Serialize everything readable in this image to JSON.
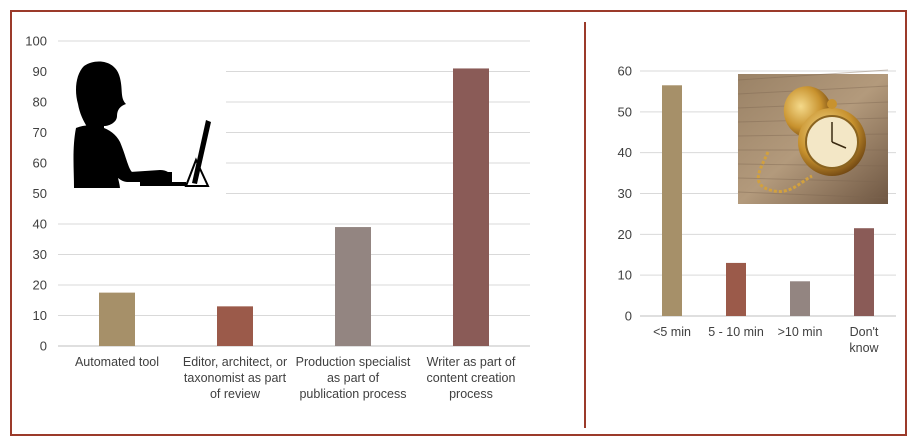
{
  "chart_data": [
    {
      "type": "bar",
      "categories": [
        [
          "Automated tool"
        ],
        [
          "Editor, architect, or",
          "taxonomist as part",
          "of review"
        ],
        [
          "Production specialist",
          "as part of",
          "publication process"
        ],
        [
          "Writer as part of",
          "content creation",
          "process"
        ]
      ],
      "values": [
        17.5,
        13,
        39,
        91
      ],
      "colors": [
        "#a69069",
        "#9b5a4a",
        "#938581",
        "#8a5b57"
      ],
      "ylim": [
        0,
        100
      ],
      "yticks": [
        0,
        10,
        20,
        30,
        40,
        50,
        60,
        70,
        80,
        90,
        100
      ],
      "grid": true,
      "icon": "person-at-computer-icon"
    },
    {
      "type": "bar",
      "categories": [
        [
          "<5 min"
        ],
        [
          "5 - 10 min"
        ],
        [
          ">10 min"
        ],
        [
          "Don't",
          "know"
        ]
      ],
      "values": [
        56.5,
        13,
        8.5,
        21.5
      ],
      "colors": [
        "#a69069",
        "#9b5a4a",
        "#938581",
        "#8a5b57"
      ],
      "ylim": [
        0,
        60
      ],
      "yticks": [
        0,
        10,
        20,
        30,
        40,
        50,
        60
      ],
      "grid": true,
      "icon": "pocket-watch-photo"
    }
  ]
}
